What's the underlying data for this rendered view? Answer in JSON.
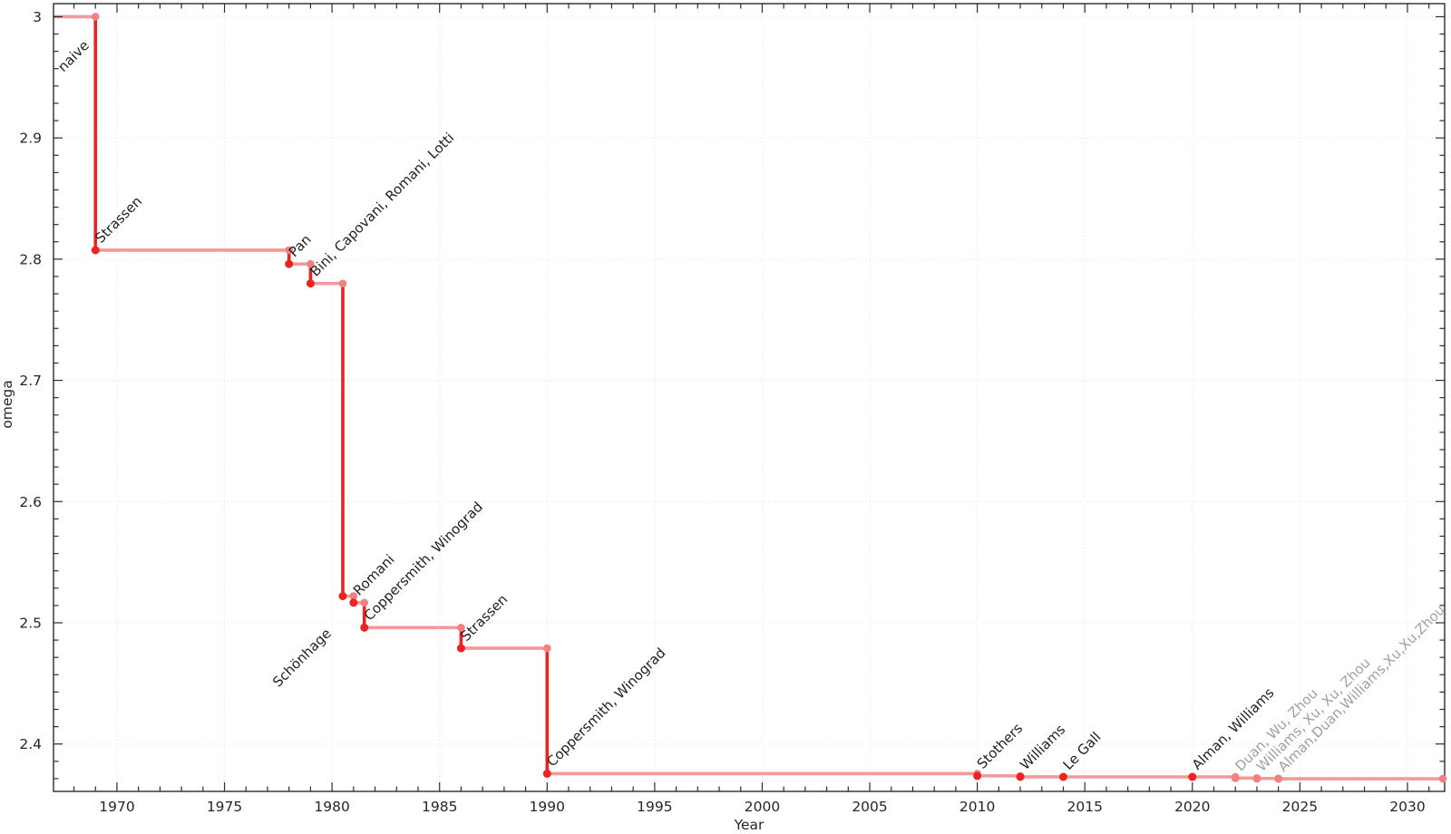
{
  "chart_data": {
    "type": "line",
    "subtype": "step",
    "title": "",
    "xlabel": "Year",
    "ylabel": "omega",
    "x_ticks": [
      1970,
      1975,
      1980,
      1985,
      1990,
      1995,
      2000,
      2005,
      2010,
      2015,
      2020,
      2025,
      2030
    ],
    "y_ticks": [
      2.4,
      2.5,
      2.6,
      2.7,
      2.8,
      2.9,
      3
    ],
    "x_range": [
      1967.05,
      2031.73
    ],
    "y_range": [
      2.3609,
      3.0108
    ],
    "grid": true,
    "legend_position": "none",
    "start": {
      "label": "naive",
      "omega": 3
    },
    "points": [
      {
        "year": 1969,
        "omega": 2.8074,
        "label": "Strassen",
        "established": true
      },
      {
        "year": 1978,
        "omega": 2.796,
        "label": "Pan",
        "established": true
      },
      {
        "year": 1979,
        "omega": 2.7799,
        "label": "Bini, Capovani, Romani, Lotti",
        "established": true
      },
      {
        "year": 1980.5,
        "omega": 2.522,
        "label": "Schönhage",
        "established": true,
        "label_dir": "down-left"
      },
      {
        "year": 1981,
        "omega": 2.5166,
        "label": "Romani",
        "established": true
      },
      {
        "year": 1981.5,
        "omega": 2.496,
        "label": "Coppersmith, Winograd",
        "established": true
      },
      {
        "year": 1986,
        "omega": 2.479,
        "label": "Strassen",
        "established": true
      },
      {
        "year": 1990,
        "omega": 2.3755,
        "label": "Coppersmith, Winograd",
        "established": true
      },
      {
        "year": 2010,
        "omega": 2.3737,
        "label": "Stothers",
        "established": true
      },
      {
        "year": 2012,
        "omega": 2.3729,
        "label": "Williams",
        "established": true
      },
      {
        "year": 2014,
        "omega": 2.37287,
        "label": "Le Gall",
        "established": true
      },
      {
        "year": 2020,
        "omega": 2.37286,
        "label": "Alman, Williams",
        "established": true
      },
      {
        "year": 2022,
        "omega": 2.37188,
        "label": "Duan, Wu, Zhou",
        "established": false
      },
      {
        "year": 2023,
        "omega": 2.37155,
        "label": "Williams, Xu, Xu, Zhou",
        "established": false
      },
      {
        "year": 2024,
        "omega": 2.37134,
        "label": "Alman,Duan,Williams,Xu,Xu,Zhou",
        "established": false
      }
    ],
    "colors": {
      "step_vertical": "#ee2222",
      "step_horizontal": "#f59898",
      "marker_new": "#ee2222",
      "marker_prev": "#f28080",
      "label_established": "#1f1f1f",
      "label_preprint": "#a0a0a0",
      "grid": "#e0e0e0",
      "axis": "#2b2b2b",
      "tick_label": "#262626"
    }
  }
}
